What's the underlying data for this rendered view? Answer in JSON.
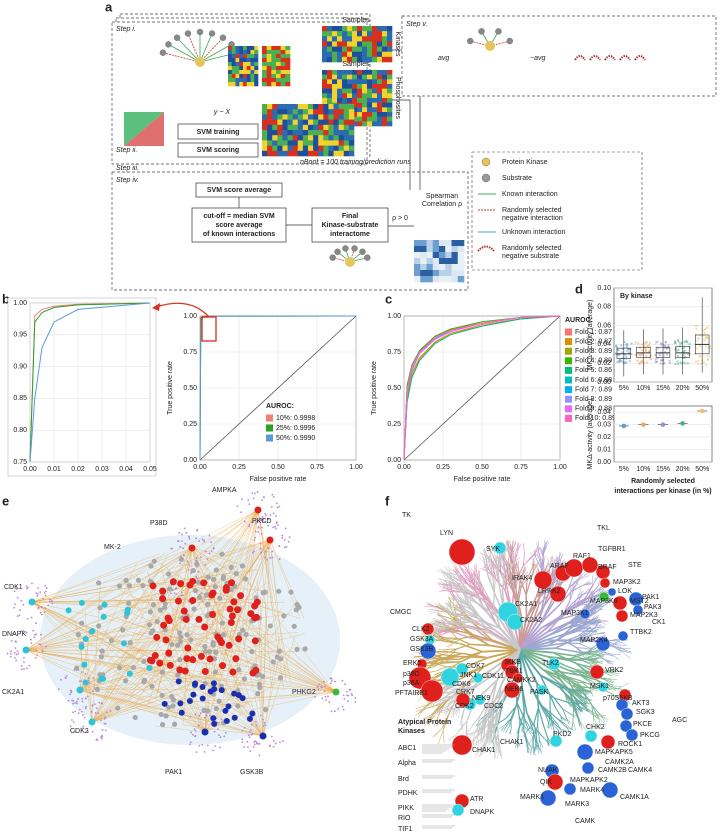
{
  "panel_labels": [
    "a",
    "b",
    "c",
    "d",
    "e",
    "f"
  ],
  "panel_a": {
    "steps": [
      "Step i.",
      "Step ii.",
      "Step iii.",
      "Step iv.",
      "Step v."
    ],
    "samples": "Samples",
    "kinases": "Kinases",
    "phosphosites": "Phosphosites",
    "model": "y ~ X",
    "svm_training": "SVM training",
    "svm_scoring": "SVM scoring",
    "nboot": "nBoot = 100 training/prediction runs",
    "svm_average": "SVM score average",
    "cutoff": [
      "cut-off = median SVM",
      "score average",
      "of known interactions"
    ],
    "final": [
      "Final",
      "Kinase-substrate",
      "interactome"
    ],
    "spearman": [
      "Spearman",
      "Correlation ρ"
    ],
    "rho": "ρ > 0",
    "formula": [
      "avg",
      "−avg"
    ],
    "legend": [
      {
        "lines": [
          "Protein Kinase"
        ]
      },
      {
        "lines": [
          "Substrate"
        ]
      },
      {
        "lines": [
          "Known interaction"
        ]
      },
      {
        "lines": [
          "Randomly selected",
          "negative interaction"
        ]
      },
      {
        "lines": [
          "Unknown interaction"
        ]
      },
      {
        "lines": [
          "Randomly selected",
          "negative substrate"
        ]
      }
    ]
  },
  "chart_data": [
    {
      "type": "line",
      "xlim": [
        0,
        0.05
      ],
      "xticks": [
        {
          "value": 0,
          "label": "0.00"
        },
        0.01,
        0.02,
        0.03,
        0.04,
        0.05
      ],
      "ylim": [
        0.75,
        1
      ],
      "yticks": [
        0.75,
        {
          "value": 0.8,
          "label": "0.80"
        },
        0.85,
        {
          "value": 0.9,
          "label": "0.90"
        },
        0.95,
        {
          "value": 1,
          "label": "1.00"
        }
      ],
      "grid": true,
      "x": [
        0,
        0.002,
        0.005,
        0.01,
        0.02,
        0.05
      ],
      "series": [
        {
          "color": "#f08070",
          "values": [
            0.75,
            0.98,
            0.99,
            0.995,
            0.998,
            1
          ]
        },
        {
          "color": "#2ca02c",
          "values": [
            0.75,
            0.97,
            0.985,
            0.993,
            0.997,
            1
          ]
        },
        {
          "color": "#5b9bd5",
          "values": [
            0.75,
            0.85,
            0.93,
            0.97,
            0.99,
            1
          ]
        }
      ]
    },
    {
      "type": "line",
      "xlabel": "False positive rate",
      "ylabel": "True positive rate",
      "xlim": [
        0,
        1
      ],
      "xticks": [
        {
          "value": 0,
          "label": "0.00"
        },
        0.25,
        {
          "value": 0.5,
          "label": "0.50"
        },
        0.75,
        {
          "value": 1,
          "label": "1.00"
        }
      ],
      "ylim": [
        0,
        1
      ],
      "yticks": [
        {
          "value": 0,
          "label": "0.00"
        },
        0.25,
        {
          "value": 0.5,
          "label": "0.50"
        },
        0.75,
        {
          "value": 1,
          "label": "1.00"
        }
      ],
      "grid": true,
      "legend_title": "AUROC:",
      "x": [
        0,
        0.005,
        0.02,
        0.1,
        1
      ],
      "series": [
        {
          "name": "10%: 0.9998",
          "color": "#f08070",
          "values": [
            0,
            0.99,
            0.998,
            1,
            1
          ]
        },
        {
          "name": "25%: 0.9996",
          "color": "#2ca02c",
          "values": [
            0,
            0.985,
            0.997,
            0.999,
            1
          ]
        },
        {
          "name": "50%: 0.9990",
          "color": "#5b9bd5",
          "values": [
            0,
            0.96,
            0.99,
            0.998,
            1
          ]
        }
      ]
    },
    {
      "type": "line",
      "xlabel": "False positive rate",
      "ylabel": "True positive rate",
      "xlim": [
        0,
        1
      ],
      "xticks": [
        {
          "value": 0,
          "label": "0.00"
        },
        0.25,
        {
          "value": 0.5,
          "label": "0.50"
        },
        0.75,
        {
          "value": 1,
          "label": "1.00"
        }
      ],
      "ylim": [
        0,
        1
      ],
      "yticks": [
        {
          "value": 0,
          "label": "0.00"
        },
        0.25,
        {
          "value": 0.5,
          "label": "0.50"
        },
        0.75,
        {
          "value": 1,
          "label": "1.00"
        }
      ],
      "grid": true,
      "legend_title": "AUROC:",
      "x": [
        0,
        0.02,
        0.05,
        0.1,
        0.2,
        0.3,
        0.5,
        0.75,
        1
      ],
      "series": [
        {
          "name": "Fold 1: 0.87",
          "color": "#f8766d",
          "values": [
            0,
            0.42,
            0.58,
            0.7,
            0.82,
            0.88,
            0.94,
            0.98,
            1
          ]
        },
        {
          "name": "Fold 2: 0.87",
          "color": "#d89000",
          "values": [
            0,
            0.45,
            0.6,
            0.71,
            0.82,
            0.88,
            0.93,
            0.98,
            1
          ]
        },
        {
          "name": "Fold 3: 0.89",
          "color": "#a3a500",
          "values": [
            0,
            0.5,
            0.65,
            0.76,
            0.86,
            0.91,
            0.95,
            0.99,
            1
          ]
        },
        {
          "name": "Fold 4: 0.89",
          "color": "#39b600",
          "values": [
            0,
            0.52,
            0.66,
            0.76,
            0.86,
            0.91,
            0.96,
            0.99,
            1
          ]
        },
        {
          "name": "Fold 5: 0.86",
          "color": "#00bf7d",
          "values": [
            0,
            0.4,
            0.57,
            0.69,
            0.81,
            0.87,
            0.93,
            0.98,
            1
          ]
        },
        {
          "name": "Fold 6: 0.88",
          "color": "#00bfc4",
          "values": [
            0,
            0.47,
            0.62,
            0.74,
            0.84,
            0.9,
            0.95,
            0.99,
            1
          ]
        },
        {
          "name": "Fold 7: 0.89",
          "color": "#00b0f6",
          "values": [
            0,
            0.49,
            0.64,
            0.75,
            0.85,
            0.9,
            0.95,
            0.99,
            1
          ]
        },
        {
          "name": "Fold 8: 0.89",
          "color": "#9590ff",
          "values": [
            0,
            0.48,
            0.64,
            0.75,
            0.85,
            0.9,
            0.95,
            0.99,
            1
          ]
        },
        {
          "name": "Fold 9: 0.88",
          "color": "#e76bf3",
          "values": [
            0,
            0.47,
            0.63,
            0.74,
            0.84,
            0.89,
            0.95,
            0.99,
            1
          ]
        },
        {
          "name": "Fold 10: 0.89",
          "color": "#ff62bc",
          "values": [
            0,
            0.49,
            0.65,
            0.75,
            0.85,
            0.9,
            0.95,
            0.99,
            1
          ]
        }
      ]
    },
    {
      "type": "box",
      "title": "By kinase",
      "ylabel": "MKΔ-activity (average)",
      "categories": [
        "5%",
        "10%",
        "15%",
        "20%",
        "50%"
      ],
      "ylim": [
        0,
        0.1
      ],
      "yticks": [
        {
          "value": 0,
          "label": "0.00"
        },
        0.02,
        0.04,
        0.06,
        0.08,
        {
          "value": 0.1,
          "label": "0.10"
        }
      ],
      "grid": true,
      "colors": [
        "#5b9bd5",
        "#f4a261",
        "#9d8ec7",
        "#4caf7d",
        "#e9c46a"
      ],
      "boxes": [
        {
          "min": 0.006,
          "q1": 0.025,
          "median": 0.03,
          "q3": 0.036,
          "max": 0.055
        },
        {
          "min": 0.008,
          "q1": 0.026,
          "median": 0.031,
          "q3": 0.037,
          "max": 0.056
        },
        {
          "min": 0.008,
          "q1": 0.026,
          "median": 0.031,
          "q3": 0.037,
          "max": 0.057
        },
        {
          "min": 0.008,
          "q1": 0.026,
          "median": 0.031,
          "q3": 0.038,
          "max": 0.058
        },
        {
          "min": 0.01,
          "q1": 0.03,
          "median": 0.04,
          "q3": 0.05,
          "max": 0.09
        }
      ]
    },
    {
      "type": "point",
      "ylabel": "MKΔ-activity (average)",
      "xlabel": [
        "Randomly selected",
        "interactions per kinase (in %)"
      ],
      "categories": [
        "5%",
        "10%",
        "15%",
        "20%",
        "50%"
      ],
      "values": [
        0.029,
        0.03,
        0.03,
        0.031,
        0.041
      ],
      "ylim": [
        0,
        0.045
      ],
      "yticks": [
        {
          "value": 0,
          "label": "0.00"
        },
        0.01,
        0.02,
        0.03,
        0.04
      ],
      "grid": true,
      "colors": [
        "#5b9bd5",
        "#f4a261",
        "#9d8ec7",
        "#4caf7d",
        "#e9c46a"
      ]
    }
  ],
  "panel_e": {
    "nodes": [
      {
        "label": "MK-2",
        "color": "#e0201c"
      },
      {
        "label": "P38D",
        "color": "#e0201c"
      },
      {
        "label": "AMPKA",
        "color": "#e0201c"
      },
      {
        "label": "PKCD",
        "color": "#e0201c"
      },
      {
        "label": "CDK1",
        "color": "#2bc4d8"
      },
      {
        "label": "DNAPK",
        "color": "#2bc4d8"
      },
      {
        "label": "CK2A1",
        "color": "#2bc4d8"
      },
      {
        "label": "CDK2",
        "color": "#2bc4d8"
      },
      {
        "label": "PHKG2",
        "color": "#3cb83c"
      },
      {
        "label": "PAK1",
        "color": "#1a2fb0"
      },
      {
        "label": "GSK3B",
        "color": "#1a2fb0"
      }
    ]
  },
  "panel_f": {
    "group_color": "#2a7ab8",
    "groups": [
      "TK",
      "TKL",
      "STE",
      "CMGC",
      "CK1",
      "AGC",
      "CAMK"
    ],
    "kinases": [
      "LYN",
      "SYK",
      "IRAK4",
      "ARAF",
      "RAF1",
      "TGFBR1",
      "BRAF",
      "LRRK2",
      "MAP3K2",
      "MAP3K6",
      "MST2",
      "MAP3K1",
      "LOK",
      "PAK1",
      "PAK3",
      "MAP2K3",
      "MAP2K4",
      "TTBK2",
      "CLK2",
      "GSK3A",
      "GSK3B",
      "CK2A1",
      "CK2A2",
      "ERK5",
      "p38D",
      "p38A",
      "PFTAIRE1",
      "CDK7",
      "JNK1",
      "CDK6",
      "CRK7",
      "CDK11",
      "CDK2",
      "CDC2",
      "IKKB",
      "TBK1",
      "CAMKK2",
      "NEK6",
      "NEK9",
      "TLK2",
      "PASK",
      "VRK2",
      "MSK1",
      "p70S6KB",
      "AKT3",
      "SGK3",
      "PKCE",
      "PKCG",
      "ROCK1",
      "PKD2",
      "CHK2",
      "CHAK1",
      "MAPKAPK5",
      "CAMK2A",
      "CAMK2B",
      "MAPKAPK2",
      "CAMK4",
      "NUAK",
      "QIK",
      "MARK4",
      "MARK1",
      "MARK3",
      "CAMK1A",
      "CHAK1",
      "ATR",
      "DNAPK"
    ],
    "atypical_title": [
      "Atypical Protein",
      "Kinases"
    ],
    "atypical": [
      "ABC1",
      "Alpha",
      "Brd",
      "PDHK",
      "PIKK",
      "RIO",
      "TIF1"
    ]
  }
}
